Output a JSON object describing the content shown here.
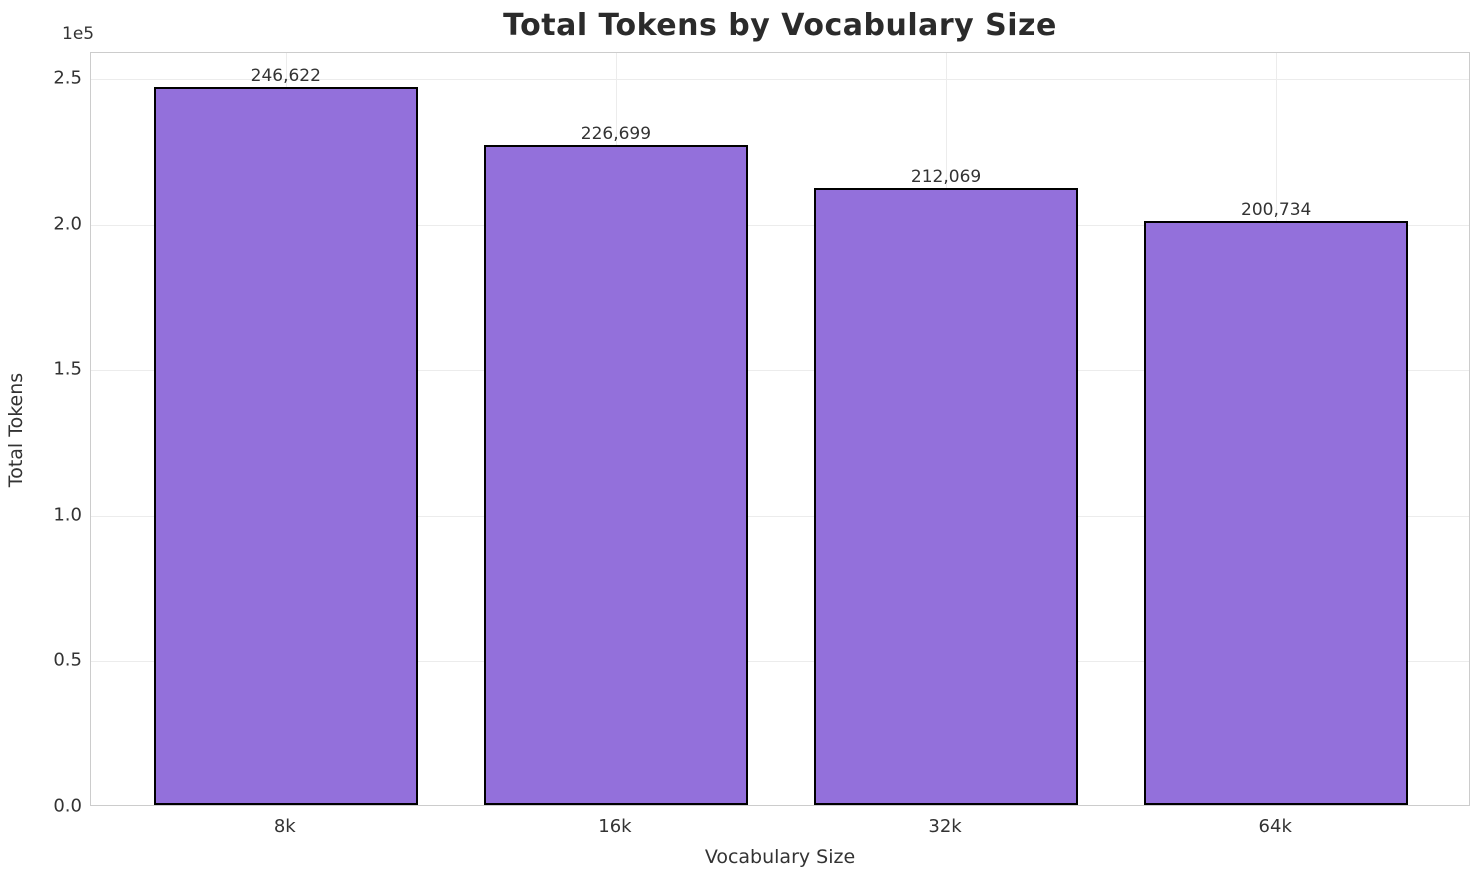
{
  "chart_data": {
    "type": "bar",
    "title": "Total Tokens by Vocabulary Size",
    "xlabel": "Vocabulary Size",
    "ylabel": "Total Tokens",
    "offset_label": "1e5",
    "categories": [
      "8k",
      "16k",
      "32k",
      "64k"
    ],
    "values": [
      246622,
      226699,
      212069,
      200734
    ],
    "value_labels": [
      "246,622",
      "226,699",
      "212,069",
      "200,734"
    ],
    "y_ticks": [
      {
        "label": "0.0",
        "value": 0
      },
      {
        "label": "0.5",
        "value": 50000
      },
      {
        "label": "1.0",
        "value": 100000
      },
      {
        "label": "1.5",
        "value": 150000
      },
      {
        "label": "2.0",
        "value": 200000
      },
      {
        "label": "2.5",
        "value": 250000
      }
    ],
    "ylim": [
      0,
      259000
    ],
    "grid": true,
    "legend": null,
    "colors": {
      "bar_fill": "#9370DB",
      "bar_edge": "#000000",
      "grid": "#ececec",
      "spine": "#cccccc",
      "text": "#333333",
      "title": "#2b2b2b",
      "background": "#ffffff"
    }
  }
}
